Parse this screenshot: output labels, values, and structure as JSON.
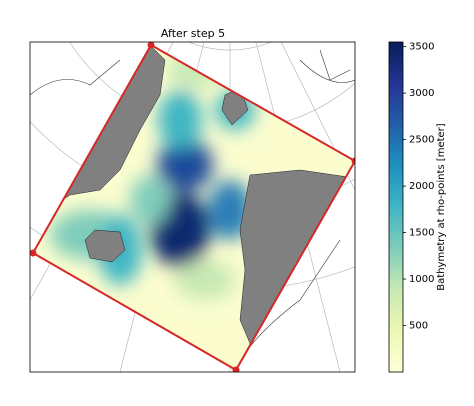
{
  "map": {
    "title": "After step 5",
    "colorbar": {
      "label": "Bathymetry at rho-points [meter]",
      "lim": [
        0,
        3550
      ],
      "ticks": [
        500,
        1000,
        1500,
        2000,
        2500,
        3000,
        3500
      ]
    }
  }
}
